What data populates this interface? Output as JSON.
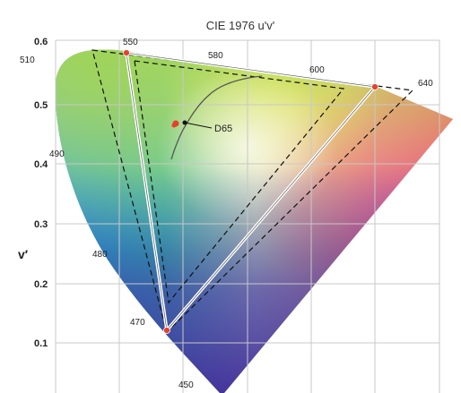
{
  "title": "CIE 1976 u'v'",
  "y_axis_label": "v′",
  "y_ticks": [
    "0.6",
    "0.5",
    "0.4",
    "0.3",
    "0.2",
    "0.1"
  ],
  "wavelength_labels": [
    "550",
    "580",
    "510",
    "600",
    "640",
    "490",
    "480",
    "470",
    "450"
  ],
  "white_point_label": "D65",
  "colors": {
    "primary_marker": "#e8402a",
    "triangle_solid": "#ffffff",
    "triangle_dashed": "#111111",
    "planckian_locus": "#555555",
    "grid": "#c8c8c8"
  }
}
